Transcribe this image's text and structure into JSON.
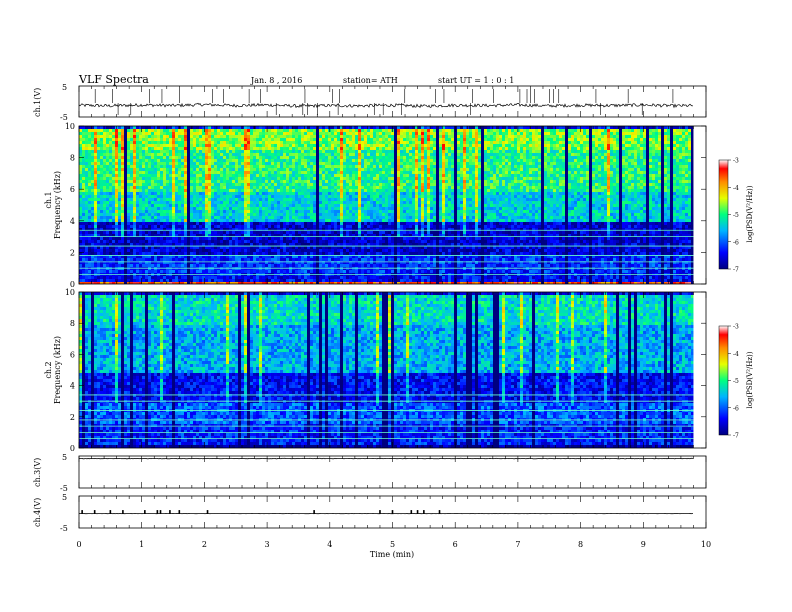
{
  "header": {
    "title": "VLF  Spectra",
    "date": "Jan.  8  ,  2016",
    "station": "station= ATH",
    "start_ut": "start  UT  =    1 : 0  : 1"
  },
  "chart_data": [
    {
      "type": "line",
      "panel": "ch1-waveform",
      "ylabel": "ch.1(V)",
      "ylim": [
        -5,
        5
      ],
      "yticks": [
        "5",
        "-5"
      ],
      "x": [
        0,
        0.5,
        1,
        1.5,
        2,
        2.5,
        3,
        3.5,
        4,
        4.5,
        5,
        5.5,
        6,
        6.5,
        7,
        7.5,
        8,
        8.5,
        9,
        9.5,
        9.8
      ],
      "values": [
        -1.2,
        -1.4,
        -1.1,
        -1.3,
        -1.0,
        -1.3,
        -1.1,
        -1.5,
        -1.3,
        -1.4,
        -1.2,
        -1.5,
        -1.2,
        -1.3,
        -1.1,
        -1.4,
        -1.2,
        -1.3,
        -1.1,
        -1.4,
        -1.3
      ]
    },
    {
      "type": "heatmap",
      "panel": "ch1-spectrogram",
      "ylabel": "ch.1",
      "ylabel2": "Frequency  (kHz)",
      "ylim": [
        0,
        10
      ],
      "yticks": [
        "0",
        "2",
        "4",
        "6",
        "8",
        "10"
      ],
      "value_range": [
        -7,
        -3
      ],
      "colorbar_label": "log(PSD(V²/Hz))",
      "colorbar_ticks": [
        "-3",
        "-4",
        "-5",
        "-6",
        "-7"
      ],
      "colormap": [
        "#000080",
        "#0000ff",
        "#00b4ff",
        "#00ff80",
        "#e6ff00",
        "#ff8c00",
        "#ff0000",
        "#ffffff"
      ],
      "band_levels": [
        {
          "f": [
            0,
            0.2
          ],
          "v": -3.6
        },
        {
          "f": [
            0.2,
            0.8
          ],
          "v": -6.4
        },
        {
          "f": [
            0.8,
            2.0
          ],
          "v": -6.2
        },
        {
          "f": [
            2.0,
            4.0
          ],
          "v": -6.6
        },
        {
          "f": [
            4.0,
            6.0
          ],
          "v": -5.4
        },
        {
          "f": [
            6.0,
            8.5
          ],
          "v": -5.0
        },
        {
          "f": [
            8.5,
            10.0
          ],
          "v": -4.7
        }
      ]
    },
    {
      "type": "heatmap",
      "panel": "ch2-spectrogram",
      "ylabel": "ch.2",
      "ylabel2": "Frequency  (kHz)",
      "ylim": [
        0,
        10
      ],
      "yticks": [
        "0",
        "2",
        "4",
        "6",
        "8",
        "10"
      ],
      "value_range": [
        -7,
        -3
      ],
      "colorbar_label": "log(PSD(V²/Hz))",
      "colorbar_ticks": [
        "-3",
        "-4",
        "-5",
        "-6",
        "-7"
      ],
      "band_levels": [
        {
          "f": [
            0,
            0.2
          ],
          "v": -6.9
        },
        {
          "f": [
            0.2,
            1.6
          ],
          "v": -6.3
        },
        {
          "f": [
            1.6,
            3.0
          ],
          "v": -6.0
        },
        {
          "f": [
            3.0,
            5.0
          ],
          "v": -6.4
        },
        {
          "f": [
            5.0,
            8.0
          ],
          "v": -5.6
        },
        {
          "f": [
            8.0,
            10.0
          ],
          "v": -5.3
        }
      ]
    },
    {
      "type": "line",
      "panel": "ch3-waveform",
      "ylabel": "ch.3(V)",
      "ylim": [
        -5,
        5
      ],
      "yticks": [
        "5",
        "-5"
      ],
      "x": [
        0,
        9.8
      ],
      "values": [
        4.2,
        4.2
      ]
    },
    {
      "type": "line",
      "panel": "ch4-waveform",
      "ylabel": "ch.4(V)",
      "ylim": [
        -5,
        5
      ],
      "yticks": [
        "5",
        "-5"
      ],
      "x": [
        0,
        9.8
      ],
      "values": [
        -0.5,
        -0.5
      ],
      "spikes_at_min": [
        0.05,
        0.25,
        0.5,
        0.7,
        1.05,
        1.25,
        1.3,
        1.45,
        1.6,
        2.05,
        3.75,
        4.8,
        5.0,
        5.3,
        5.4,
        5.5,
        5.75
      ]
    }
  ],
  "x_axis": {
    "xlabel": "Time  (min)",
    "xlim": [
      0,
      10
    ],
    "xticks": [
      "0",
      "1",
      "2",
      "3",
      "4",
      "5",
      "6",
      "7",
      "8",
      "9",
      "10"
    ]
  }
}
